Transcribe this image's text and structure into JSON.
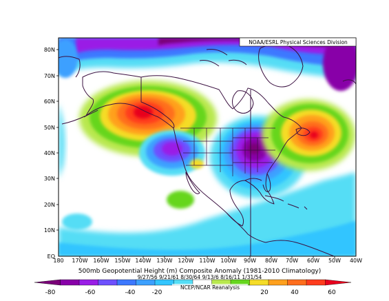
{
  "map": {
    "credit": "NOAA/ESRL Physical Sciences Division",
    "title": "500mb Geopotential Height (m) Composite Anomaly (1981-2010 Climatology)",
    "dates": "9/27/56 9/21/61 8/30/64 9/13/6 8/16/11 1/31/54",
    "source": "NCEP/NCAR Reanalysis",
    "lat_labels": [
      "80N",
      "70N",
      "60N",
      "50N",
      "40N",
      "30N",
      "20N",
      "10N",
      "EQ"
    ],
    "lon_labels": [
      "180",
      "170W",
      "160W",
      "150W",
      "140W",
      "130W",
      "120W",
      "110W",
      "100W",
      "90W",
      "80W",
      "70W",
      "60W",
      "50W",
      "40W"
    ]
  },
  "colorbar": {
    "ticks": [
      "-80",
      "-60",
      "-40",
      "-20",
      "20",
      "40",
      "60"
    ],
    "colors": [
      "#7a0078",
      "#8800a8",
      "#9a1ee6",
      "#6e50ff",
      "#3c78ff",
      "#3ca0ff",
      "#33c5ff",
      "#55ddf5",
      "#ffffff",
      "#b8e84e",
      "#66d61e",
      "#f5dc28",
      "#ffa01e",
      "#ff6e1e",
      "#ff3c1e",
      "#e8001e"
    ]
  },
  "icons": {
    "colorbar_end": "triangle-arrow-icon"
  }
}
